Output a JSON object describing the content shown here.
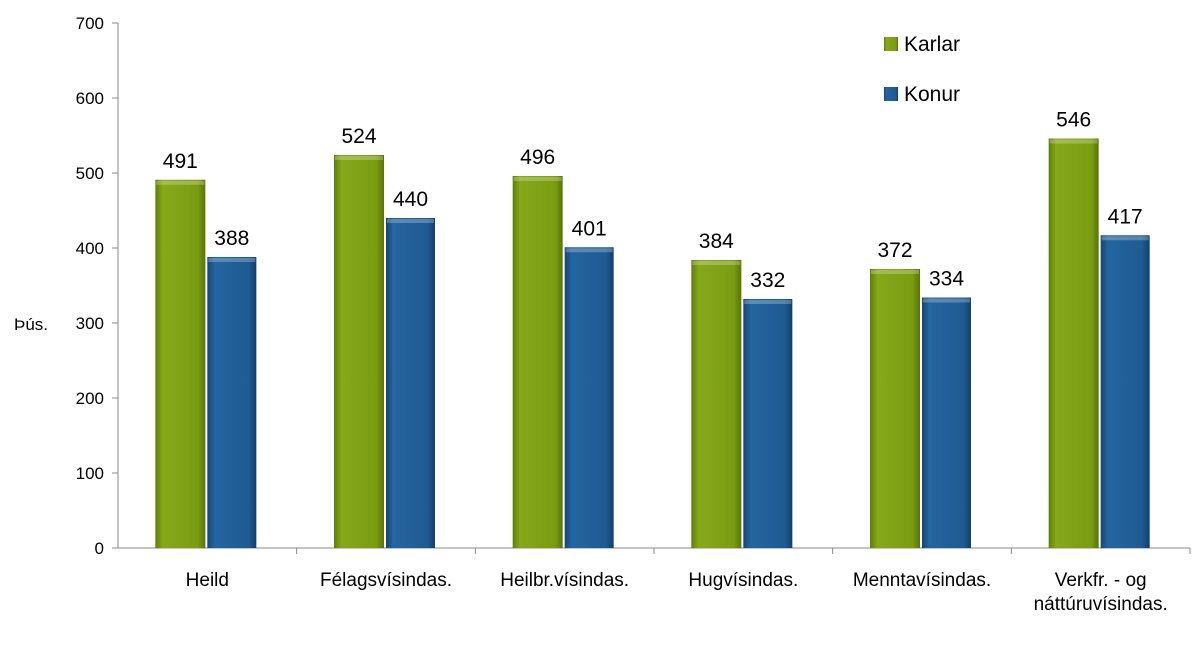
{
  "chart_data": {
    "type": "bar",
    "title": "",
    "xlabel": "",
    "ylabel": "Þús.",
    "ylim": [
      0,
      700
    ],
    "yticks": [
      0,
      100,
      200,
      300,
      400,
      500,
      600,
      700
    ],
    "categories": [
      [
        "Heild"
      ],
      [
        "Félagsvísindas."
      ],
      [
        "Heilbr.vísindas."
      ],
      [
        "Hugvísindas."
      ],
      [
        "Menntavísindas."
      ],
      [
        "Verkfr. - og",
        "náttúruvísindas."
      ]
    ],
    "series": [
      {
        "name": "Karlar",
        "color": "#7a9c12",
        "values": [
          491,
          524,
          496,
          384,
          372,
          546
        ]
      },
      {
        "name": "Konur",
        "color": "#1f5a92",
        "values": [
          388,
          440,
          401,
          332,
          334,
          417
        ]
      }
    ],
    "legend_position": "top-right",
    "grid": false
  }
}
